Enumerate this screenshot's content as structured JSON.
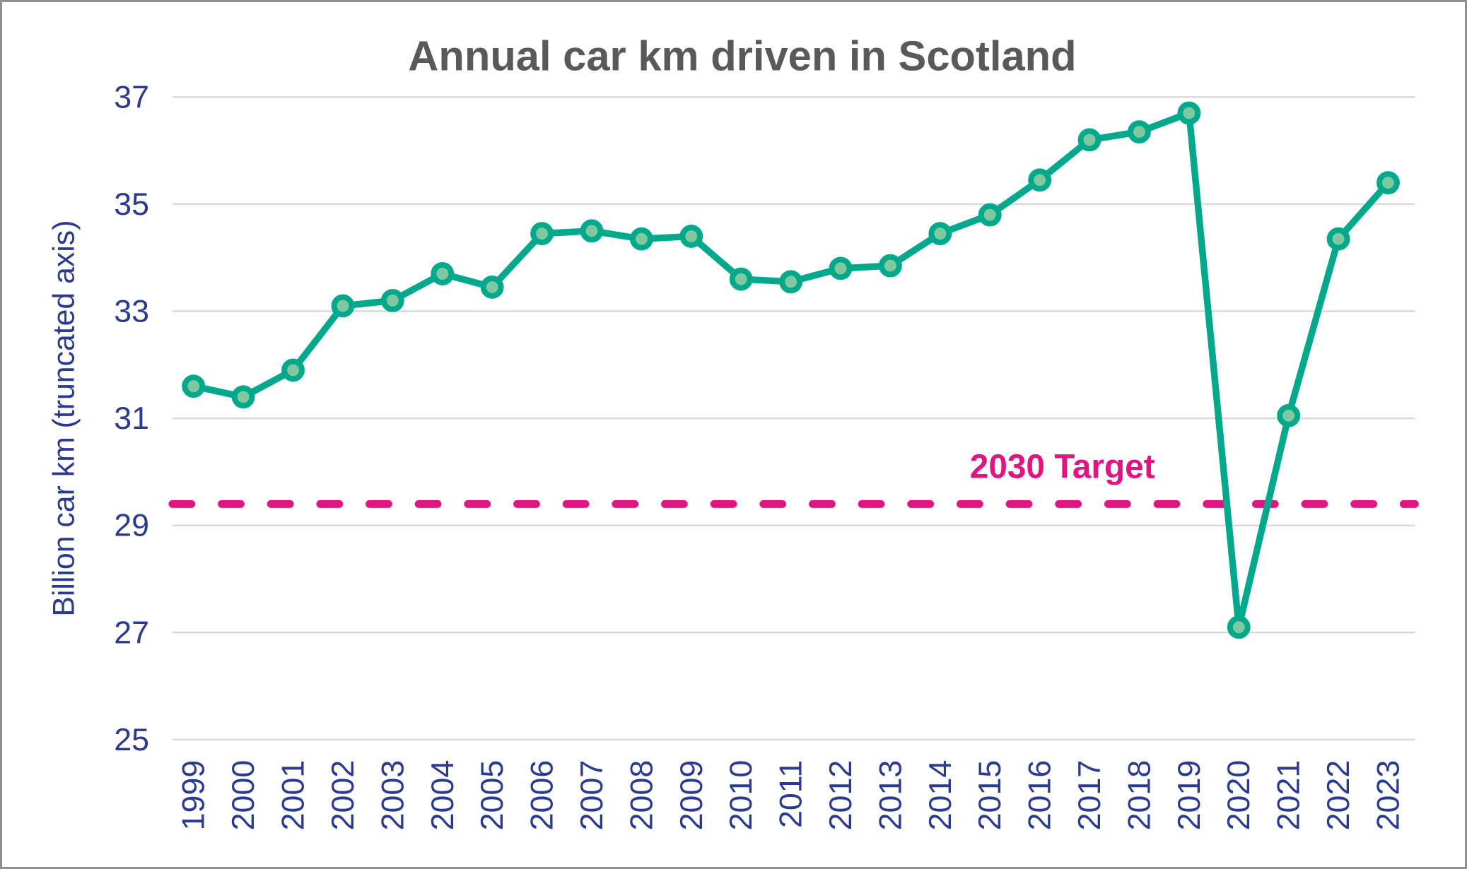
{
  "figure": {
    "background_color": "#ffffff",
    "border_color": "#8f8f8f"
  },
  "chart_data": {
    "type": "line",
    "title": "Annual car km driven in Scotland",
    "xlabel": "",
    "ylabel": "Billion car km (truncated axis)",
    "x": [
      1999,
      2000,
      2001,
      2002,
      2003,
      2004,
      2005,
      2006,
      2007,
      2008,
      2009,
      2010,
      2011,
      2012,
      2013,
      2014,
      2015,
      2016,
      2017,
      2018,
      2019,
      2020,
      2021,
      2022,
      2023
    ],
    "series": [
      {
        "name": "Annual car km driven",
        "values": [
          31.6,
          31.4,
          31.9,
          33.1,
          33.2,
          33.7,
          33.45,
          34.45,
          34.5,
          34.35,
          34.4,
          33.6,
          33.55,
          33.8,
          33.85,
          34.45,
          34.8,
          35.45,
          36.2,
          36.35,
          36.7,
          27.1,
          31.05,
          34.35,
          35.4
        ]
      }
    ],
    "ylim": [
      25,
      37
    ],
    "yticks": [
      25,
      27,
      29,
      31,
      33,
      35,
      37
    ],
    "grid": "horizontal-only",
    "legend_position": "none",
    "annotations": [
      {
        "label": "2030 Target",
        "value": 29.4,
        "style": "dashed-horizontal-line"
      }
    ],
    "colors": {
      "line": "#00a88c",
      "marker_fill": "#7fc9a1",
      "marker_ring": "#00a88c",
      "target_line": "#e3137f",
      "target_label": "#e3137f",
      "axis_text": "#2b3a91",
      "title_text": "#595959",
      "gridline": "#d9d9d9"
    }
  }
}
